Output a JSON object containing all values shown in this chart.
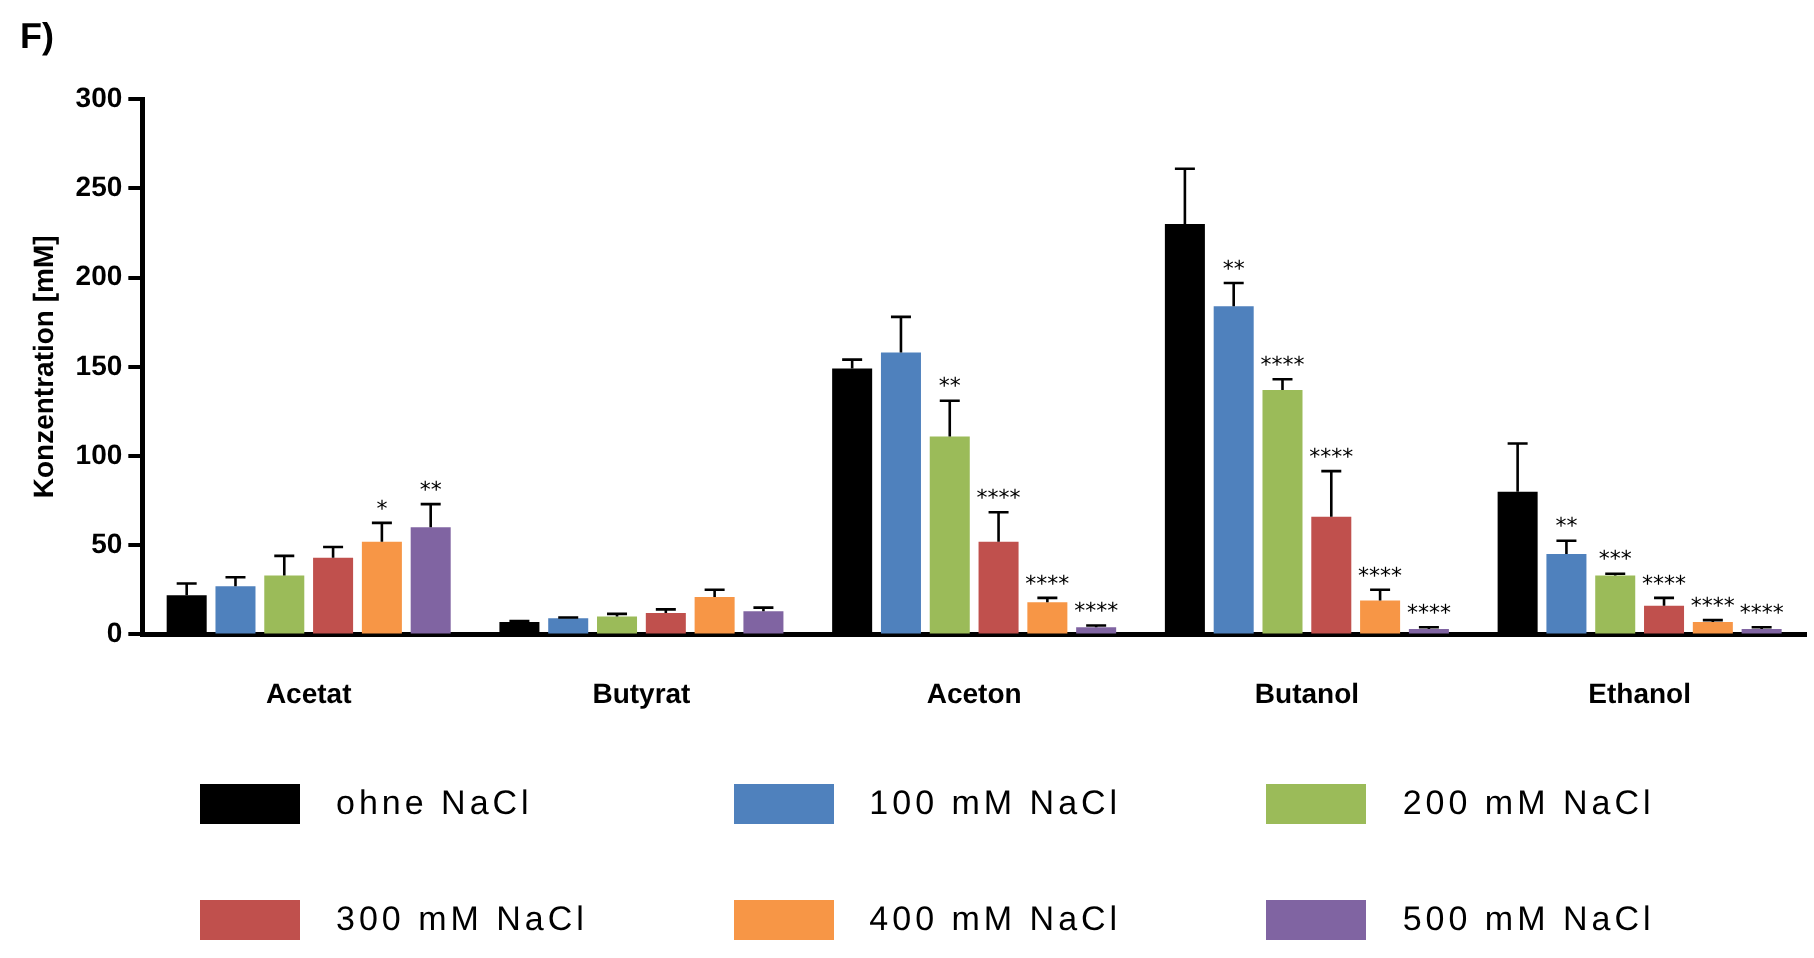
{
  "chart_data": {
    "type": "bar",
    "title": "F)",
    "ylabel": "Konzentration [mM]",
    "categories": [
      "Acetat",
      "Butyrat",
      "Aceton",
      "Butanol",
      "Ethanol"
    ],
    "series": [
      {
        "name": "ohne NaCl",
        "color": "#000000",
        "values": [
          22,
          7,
          149,
          230,
          80
        ],
        "errors": [
          [
            22,
            28.5
          ],
          [
            7,
            7.5
          ],
          [
            149,
            154
          ],
          [
            230,
            261
          ],
          [
            80,
            107
          ]
        ]
      },
      {
        "name": "100 mM NaCl",
        "color": "#4f81bd",
        "values": [
          27,
          9,
          158,
          184,
          45
        ],
        "errors": [
          [
            27,
            32
          ],
          [
            9,
            9.5
          ],
          [
            158,
            178
          ],
          [
            184,
            197
          ],
          [
            45,
            52.5
          ]
        ],
        "value_labels": [
          null,
          null,
          null,
          "**",
          "**"
        ]
      },
      {
        "name": "200 mM NaCl",
        "color": "#9bbb59",
        "values": [
          33,
          10,
          111,
          137,
          33
        ],
        "errors": [
          [
            33,
            44
          ],
          [
            10,
            11.5
          ],
          [
            111,
            131
          ],
          [
            137,
            143
          ],
          [
            33,
            34
          ]
        ],
        "value_labels": [
          null,
          null,
          "**",
          "****",
          "***"
        ]
      },
      {
        "name": "300 mM NaCl",
        "color": "#c0504d",
        "values": [
          43,
          12,
          52,
          66,
          16
        ],
        "errors": [
          [
            43,
            49
          ],
          [
            12,
            14
          ],
          [
            52,
            68.5
          ],
          [
            66,
            91.5
          ],
          [
            16,
            20.5
          ]
        ],
        "value_labels": [
          null,
          null,
          "****",
          "****",
          "****"
        ]
      },
      {
        "name": "400 mM NaCl",
        "color": "#f79646",
        "values": [
          52,
          21,
          18,
          19,
          7
        ],
        "errors": [
          [
            52,
            62.5
          ],
          [
            21,
            25
          ],
          [
            18,
            20.5
          ],
          [
            19,
            25
          ],
          [
            7,
            8
          ]
        ],
        "value_labels": [
          "*",
          null,
          "****",
          "****",
          "****"
        ]
      },
      {
        "name": "500 mM NaCl",
        "color": "#8064a2",
        "values": [
          60,
          13,
          4,
          3,
          3
        ],
        "errors": [
          [
            60,
            73
          ],
          [
            13,
            15
          ],
          [
            4,
            5
          ],
          [
            3,
            4
          ],
          [
            3,
            4
          ]
        ],
        "value_labels": [
          "**",
          null,
          "****",
          "****",
          "****"
        ]
      }
    ],
    "ylim": [
      0,
      300
    ],
    "yticks": [
      0,
      50,
      100,
      150,
      200,
      250,
      300
    ],
    "grid": false,
    "legend": "bottom"
  }
}
